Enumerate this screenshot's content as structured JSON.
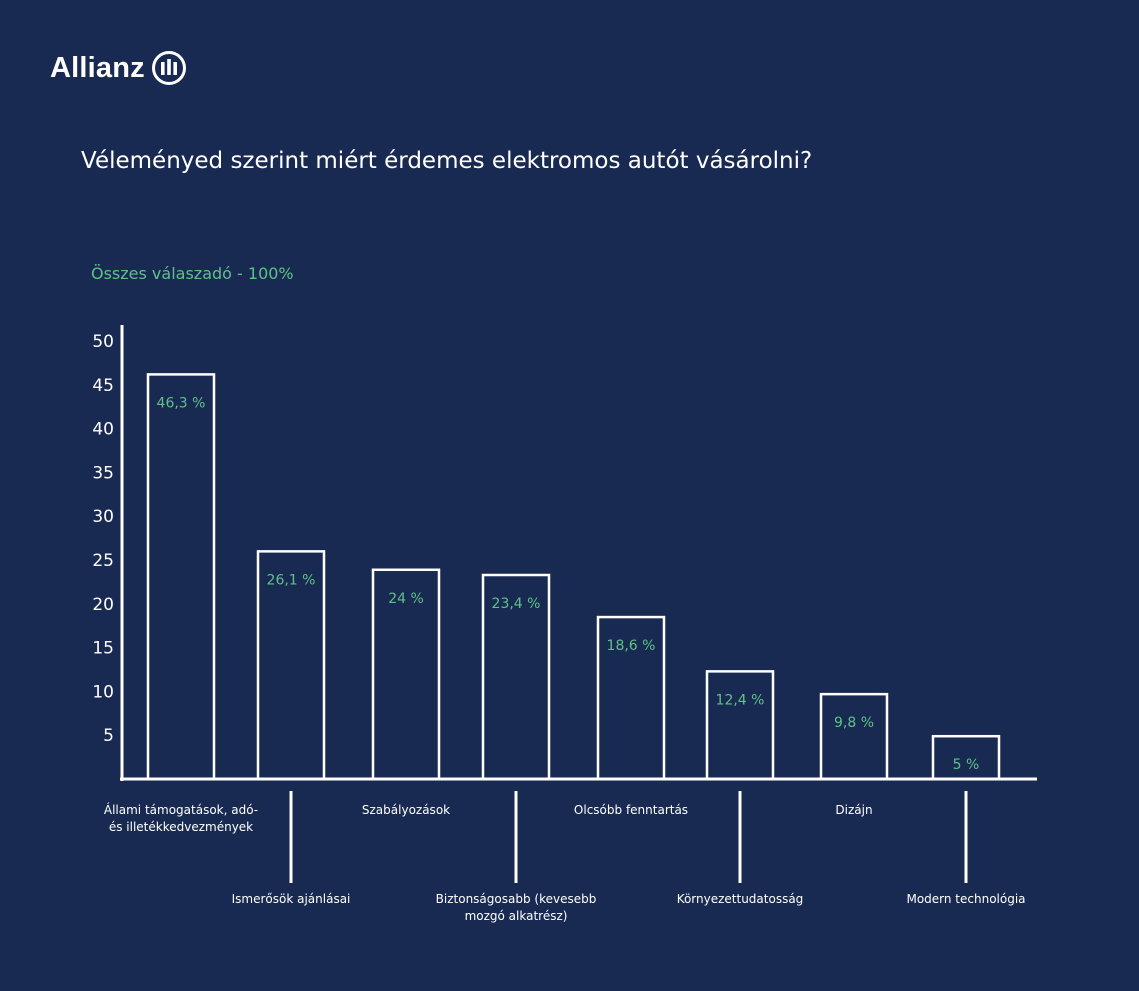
{
  "brand": {
    "name": "Allianz"
  },
  "colors": {
    "background": "#192a52",
    "accent": "#5fc187",
    "line": "#ffffff"
  },
  "chart_data": {
    "type": "bar",
    "title": "Véleményed szerint miért érdemes elektromos autót vásárolni?",
    "subtitle": "Összes válaszadó - 100%",
    "xlabel": "",
    "ylabel": "",
    "ylim": [
      0,
      50
    ],
    "yticks": [
      5,
      10,
      15,
      20,
      25,
      30,
      35,
      40,
      45,
      50
    ],
    "grid": false,
    "categories": [
      [
        "Állami támogatások, adó-",
        "és illetékkedvezmények"
      ],
      [
        "Ismerősök ajánlásai"
      ],
      [
        "Szabályozások"
      ],
      [
        "Biztonságosabb (kevesebb",
        "mozgó alkatrész)"
      ],
      [
        "Olcsóbb fenntartás"
      ],
      [
        "Környezettudatosság"
      ],
      [
        "Dizájn"
      ],
      [
        "Modern technológia"
      ]
    ],
    "values": [
      46.3,
      26.1,
      24,
      23.4,
      18.6,
      12.4,
      9.8,
      5
    ],
    "value_labels": [
      "46,3 %",
      "26,1 %",
      "24 %",
      "23,4 %",
      "18,6 %",
      "12,4 %",
      "9,8 %",
      "5 %"
    ]
  }
}
